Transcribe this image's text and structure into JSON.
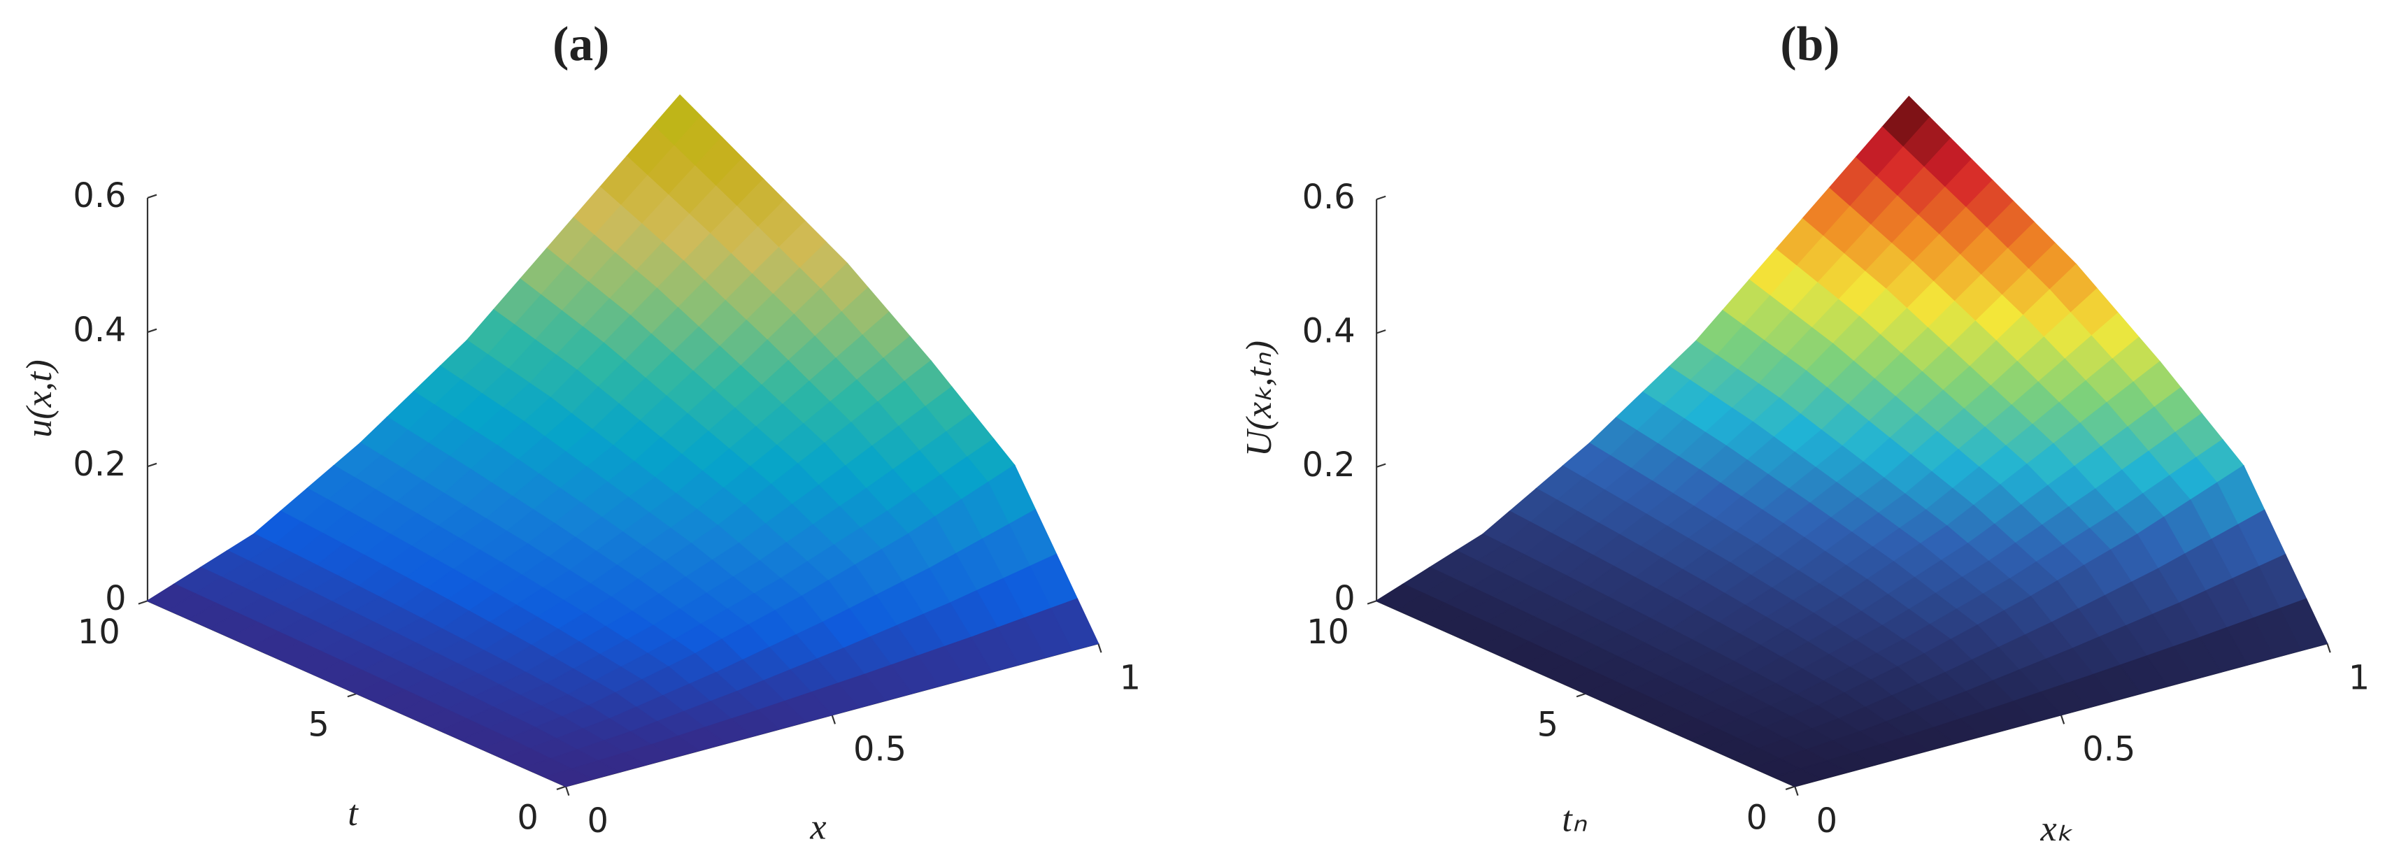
{
  "chart_data": [
    {
      "type": "surface",
      "title": "(a)",
      "xlabel": "x",
      "ylabel": "t",
      "zlabel": "u(x,t)",
      "x": [
        0,
        0.2,
        0.4,
        0.6,
        0.8,
        1
      ],
      "y": [
        0,
        2,
        4,
        6,
        8,
        10
      ],
      "z": [
        [
          0,
          0,
          0,
          0,
          0,
          0
        ],
        [
          0,
          0.022,
          0.057,
          0.1,
          0.15,
          0.21
        ],
        [
          0,
          0.033,
          0.086,
          0.15,
          0.23,
          0.31
        ],
        [
          0,
          0.042,
          0.11,
          0.19,
          0.29,
          0.4
        ],
        [
          0,
          0.05,
          0.13,
          0.23,
          0.35,
          0.47
        ],
        [
          0,
          0.057,
          0.15,
          0.26,
          0.4,
          0.54
        ]
      ],
      "xlim": [
        0,
        1
      ],
      "ylim": [
        0,
        10
      ],
      "zlim": [
        0,
        0.6
      ],
      "xticks": [
        0,
        0.5,
        1
      ],
      "yticks": [
        0,
        5,
        10
      ],
      "zticks": [
        0,
        0.2,
        0.4,
        0.6
      ],
      "colormap": [
        "#352a87",
        "#0f5cdd",
        "#1481d6",
        "#06a4ca",
        "#2eb7a4",
        "#87bf77",
        "#d1bb59",
        "#c8b020",
        "#b9b813"
      ]
    },
    {
      "type": "surface",
      "title": "(b)",
      "xlabel": "xₖ",
      "ylabel": "tₙ",
      "zlabel": "U(xₖ,tₙ)",
      "x": [
        0,
        0.2,
        0.4,
        0.6,
        0.8,
        1
      ],
      "y": [
        0,
        2,
        4,
        6,
        8,
        10
      ],
      "z": [
        [
          0,
          0,
          0,
          0,
          0,
          0
        ],
        [
          0,
          0.022,
          0.057,
          0.1,
          0.15,
          0.21
        ],
        [
          0,
          0.033,
          0.086,
          0.15,
          0.23,
          0.31
        ],
        [
          0,
          0.042,
          0.11,
          0.19,
          0.29,
          0.4
        ],
        [
          0,
          0.05,
          0.13,
          0.23,
          0.35,
          0.47
        ],
        [
          0,
          0.057,
          0.15,
          0.26,
          0.4,
          0.54
        ]
      ],
      "xlim": [
        0,
        1
      ],
      "ylim": [
        0,
        10
      ],
      "zlim": [
        0,
        0.6
      ],
      "xticks": [
        0,
        0.5,
        1
      ],
      "yticks": [
        0,
        5,
        10
      ],
      "zticks": [
        0,
        0.2,
        0.4,
        0.6
      ],
      "colormap": [
        "#1f1d45",
        "#2a3a7a",
        "#2f62b4",
        "#1fb3d6",
        "#7fd17a",
        "#f3e83a",
        "#f08a24",
        "#d4202a",
        "#4a0a0a"
      ]
    }
  ]
}
